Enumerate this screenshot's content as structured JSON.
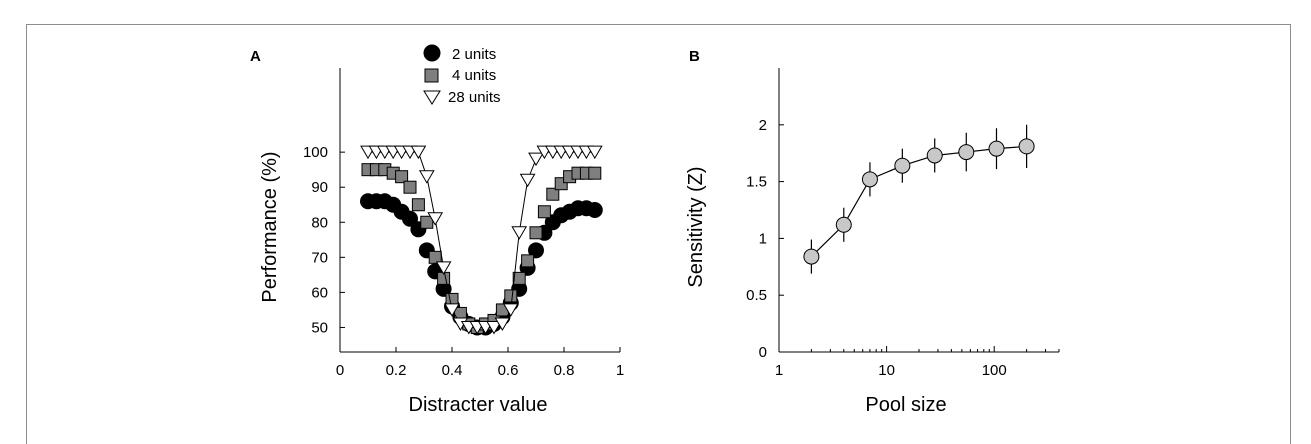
{
  "chart_data": [
    {
      "panel": "A",
      "type": "scatter",
      "xlabel": "Distracter value",
      "ylabel": "Performance (%)",
      "xlim": [
        0,
        1
      ],
      "ylim": [
        43,
        124
      ],
      "xticks": [
        0,
        0.2,
        0.4,
        0.6,
        0.8,
        1
      ],
      "xtick_labels": [
        "0",
        "0.2",
        "0.4",
        "0.6",
        "0.8",
        "1"
      ],
      "yticks": [
        50,
        60,
        70,
        80,
        90,
        100
      ],
      "ytick_labels": [
        "50",
        "60",
        "70",
        "80",
        "90",
        "100"
      ],
      "legend_position": "top",
      "series": [
        {
          "name": "2 units",
          "marker": "circle",
          "color": "#000000",
          "connected": false,
          "x": [
            0.1,
            0.13,
            0.16,
            0.19,
            0.22,
            0.25,
            0.28,
            0.31,
            0.34,
            0.37,
            0.4,
            0.43,
            0.46,
            0.49,
            0.52,
            0.55,
            0.58,
            0.61,
            0.64,
            0.67,
            0.7,
            0.73,
            0.76,
            0.79,
            0.82,
            0.85,
            0.88,
            0.91
          ],
          "y": [
            86,
            86,
            86,
            85,
            83,
            81,
            78,
            72,
            66,
            61,
            56,
            53,
            51,
            50,
            50,
            51,
            53,
            57,
            61,
            67,
            72,
            77,
            80,
            82,
            83,
            84,
            84,
            83.5
          ]
        },
        {
          "name": "4 units",
          "marker": "square",
          "color": "#7f7f7f",
          "connected": false,
          "x": [
            0.1,
            0.13,
            0.16,
            0.19,
            0.22,
            0.25,
            0.28,
            0.31,
            0.34,
            0.37,
            0.4,
            0.43,
            0.46,
            0.49,
            0.52,
            0.55,
            0.58,
            0.61,
            0.64,
            0.67,
            0.7,
            0.73,
            0.76,
            0.79,
            0.82,
            0.85,
            0.88,
            0.91
          ],
          "y": [
            95,
            95,
            95,
            94,
            93,
            90,
            85,
            80,
            70,
            64,
            58,
            54,
            51,
            50,
            51,
            52,
            55,
            59,
            64,
            69,
            77,
            83,
            88,
            91,
            93,
            94,
            94,
            94
          ]
        },
        {
          "name": "28 units",
          "marker": "triangle-down",
          "color": "#ffffff",
          "connected": true,
          "x": [
            0.1,
            0.13,
            0.16,
            0.19,
            0.22,
            0.25,
            0.28,
            0.31,
            0.34,
            0.37,
            0.4,
            0.43,
            0.46,
            0.49,
            0.52,
            0.55,
            0.58,
            0.61,
            0.64,
            0.67,
            0.7,
            0.73,
            0.76,
            0.79,
            0.82,
            0.85,
            0.88,
            0.91
          ],
          "y": [
            100,
            100,
            100,
            100,
            100,
            100,
            100,
            93,
            81,
            67,
            55,
            51,
            50,
            50,
            50,
            50,
            51,
            55,
            77,
            92,
            98,
            100,
            100,
            100,
            100,
            100,
            100,
            100
          ]
        }
      ]
    },
    {
      "panel": "B",
      "type": "line",
      "xlabel": "Pool size",
      "ylabel": "Sensitivity (Z)",
      "xscale": "log",
      "xlim": [
        1,
        400
      ],
      "ylim": [
        0,
        2.5
      ],
      "xticks": [
        1,
        10,
        100
      ],
      "xtick_labels": [
        "1",
        "10",
        "100"
      ],
      "yticks": [
        0,
        0.5,
        1,
        1.5,
        2
      ],
      "ytick_labels": [
        "0",
        "0.5",
        "1",
        "1.5",
        "2"
      ],
      "series": [
        {
          "marker": "circle",
          "color": "#c8c8c8",
          "x": [
            2,
            4,
            7,
            14,
            28,
            55,
            105,
            200
          ],
          "y": [
            0.84,
            1.12,
            1.52,
            1.64,
            1.73,
            1.76,
            1.79,
            1.81
          ],
          "error": [
            0.15,
            0.15,
            0.15,
            0.15,
            0.15,
            0.17,
            0.18,
            0.19
          ]
        }
      ]
    }
  ]
}
